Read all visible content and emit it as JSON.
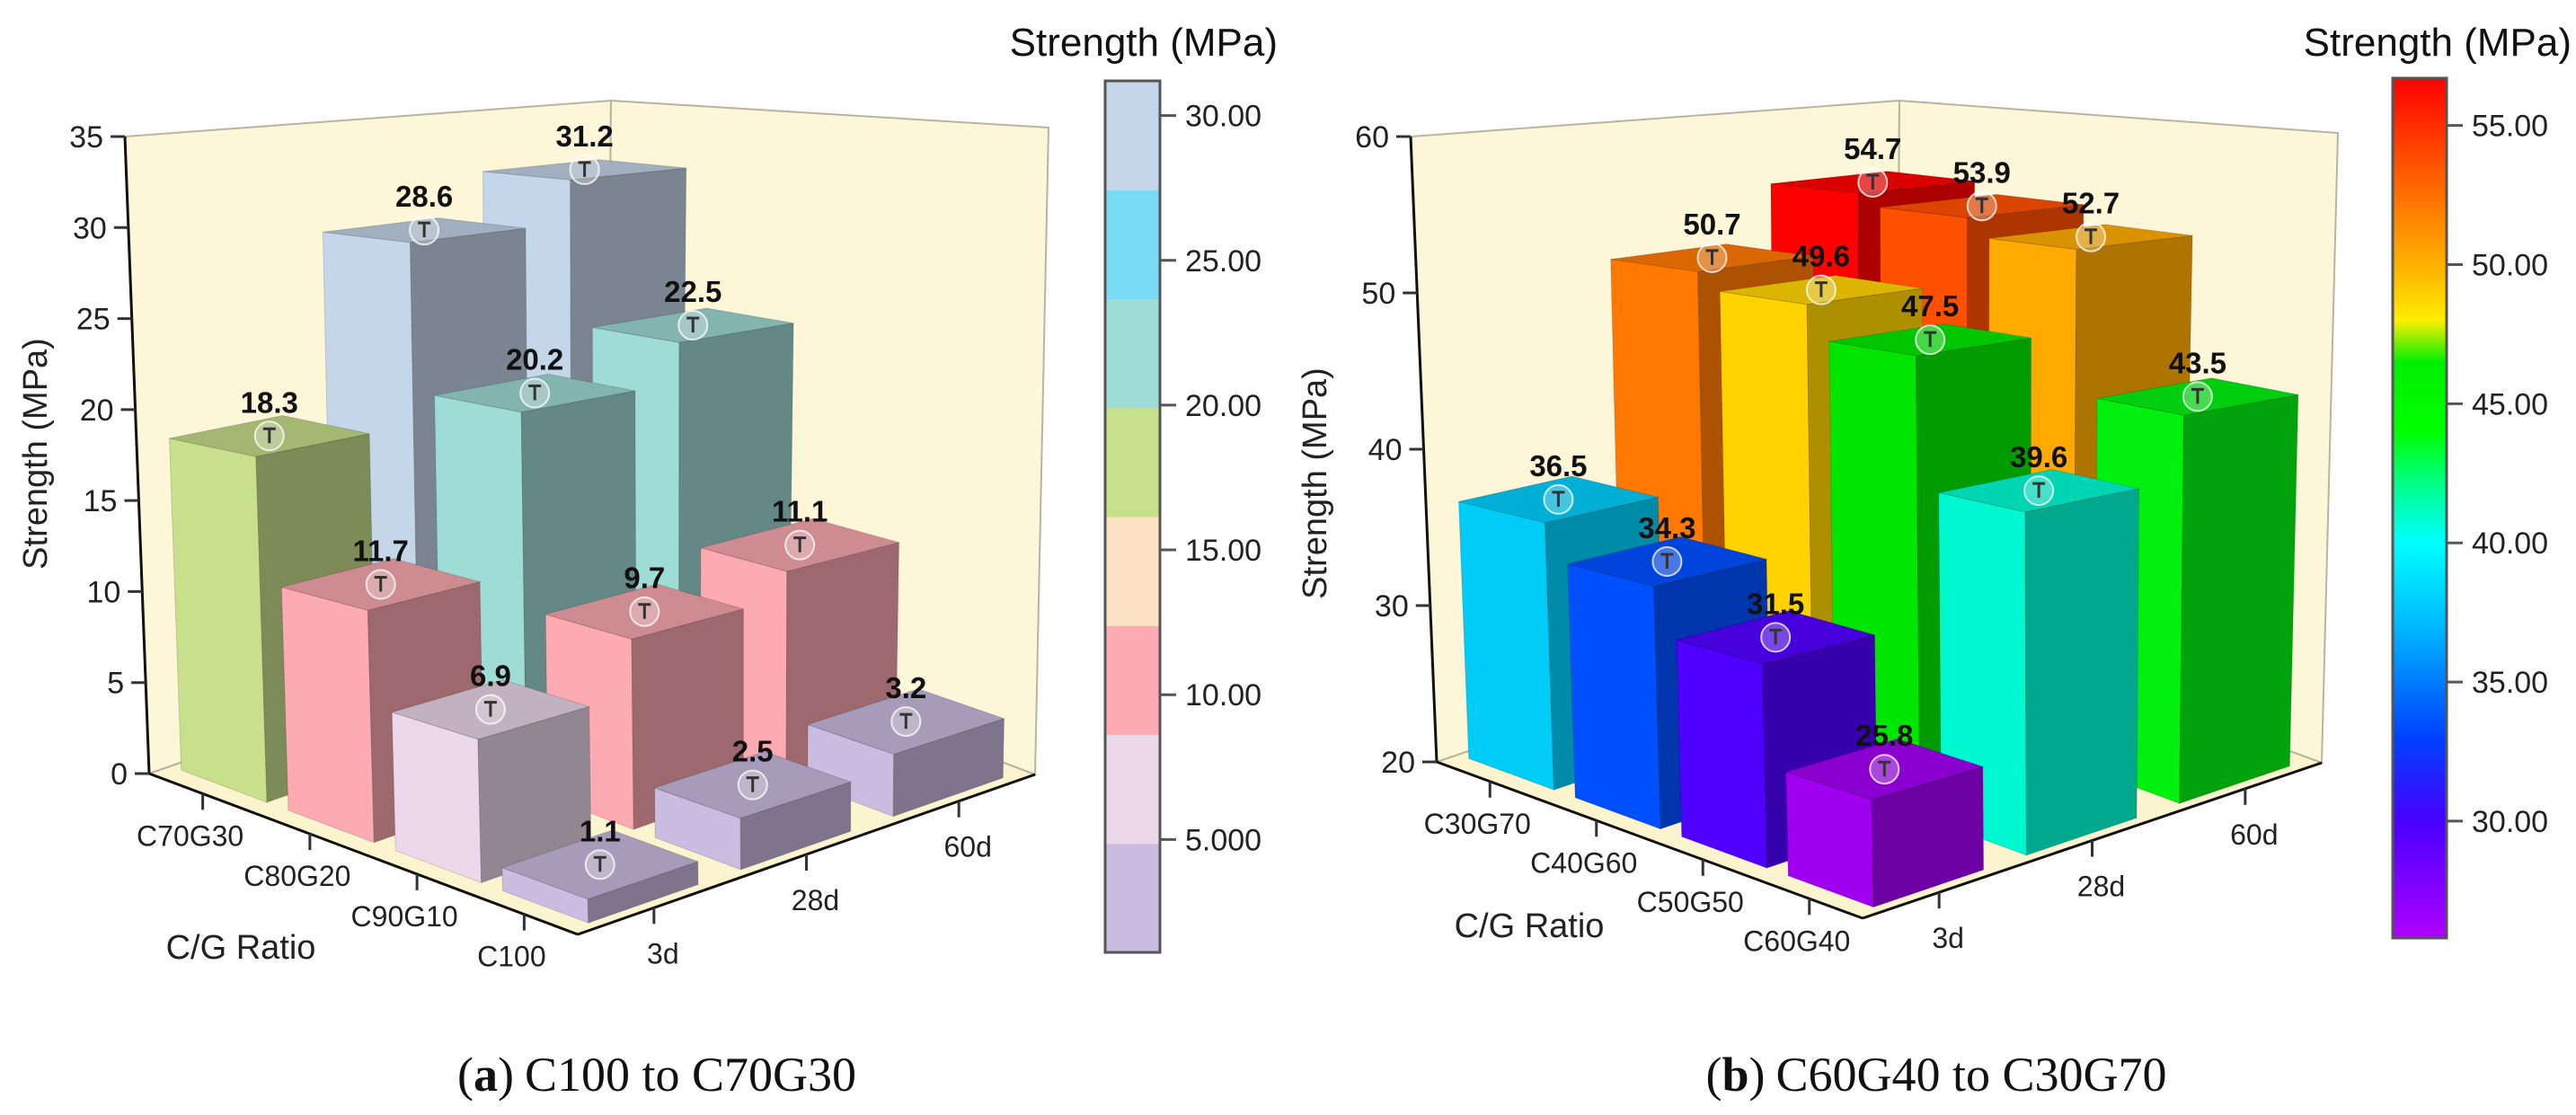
{
  "chart_data": [
    {
      "type": "bar3d",
      "ylabel": "Strength (MPa)",
      "xlabel": "C/G Ratio",
      "colorbar_title": "Strength (MPa)",
      "caption": {
        "open": "(",
        "letter": "a",
        "close": ")",
        "text": "C100 to C70G30"
      },
      "ylim": [
        0,
        35
      ],
      "yticks": [
        0,
        5,
        10,
        15,
        20,
        25,
        30,
        35
      ],
      "categories": [
        "C70G30",
        "C80G20",
        "C90G10",
        "C100"
      ],
      "ages": [
        "3d",
        "28d",
        "60d"
      ],
      "values": [
        [
          18.3,
          28.6,
          31.2
        ],
        [
          11.7,
          20.2,
          22.5
        ],
        [
          6.9,
          9.7,
          11.1
        ],
        [
          1.1,
          2.5,
          3.2
        ]
      ],
      "colors": [
        [
          "#c8e08c",
          "#c4d6ea",
          "#c4d6ea"
        ],
        [
          "#fdaab2",
          "#a0dcd6",
          "#a0dcd6"
        ],
        [
          "#ecd8ea",
          "#fdaab2",
          "#fdaab2"
        ],
        [
          "#cbbde2",
          "#cbbde2",
          "#cbbde2"
        ]
      ],
      "colorbar": {
        "kind": "discrete",
        "range": [
          1.1,
          31.2
        ],
        "bins": [
          "#cbbde2",
          "#ecd8ea",
          "#fdaab2",
          "#fde2c4",
          "#c8e08c",
          "#a0dcd6",
          "#7adcf4",
          "#c4d6ea"
        ],
        "ticks": [
          5,
          10,
          15,
          20,
          25,
          30
        ],
        "tick_labels": [
          "5.000",
          "10.00",
          "15.00",
          "20.00",
          "25.00",
          "30.00"
        ]
      }
    },
    {
      "type": "bar3d",
      "ylabel": "Strength (MPa)",
      "xlabel": "C/G Ratio",
      "colorbar_title": "Strength (MPa)",
      "caption": {
        "open": "(",
        "letter": "b",
        "close": ")",
        "text": "C60G40 to C30G70"
      },
      "ylim": [
        20,
        60
      ],
      "yticks": [
        20,
        30,
        40,
        50,
        60
      ],
      "categories": [
        "C30G70",
        "C40G60",
        "C50G50",
        "C60G40"
      ],
      "ages": [
        "3d",
        "28d",
        "60d"
      ],
      "values": [
        [
          36.5,
          50.7,
          54.7
        ],
        [
          34.3,
          49.6,
          53.9
        ],
        [
          31.5,
          47.5,
          52.7
        ],
        [
          25.8,
          39.6,
          43.5
        ]
      ],
      "colors": [
        [
          "#00ccf8",
          "#ff7800",
          "#ff0000"
        ],
        [
          "#0050ff",
          "#ffd200",
          "#ff5000"
        ],
        [
          "#5000ff",
          "#00e600",
          "#ffaa00"
        ],
        [
          "#a000f0",
          "#00f8d0",
          "#00f010"
        ]
      ],
      "colorbar": {
        "kind": "gradient",
        "range": [
          25.8,
          56.7
        ],
        "stops": [
          [
            25.8,
            "#b000ff"
          ],
          [
            30,
            "#4800ff"
          ],
          [
            33,
            "#0040ff"
          ],
          [
            37,
            "#00b8ff"
          ],
          [
            40,
            "#00ffff"
          ],
          [
            42,
            "#00ff90"
          ],
          [
            44,
            "#00ff00"
          ],
          [
            46.5,
            "#00f000"
          ],
          [
            48,
            "#ffee00"
          ],
          [
            50,
            "#ffb000"
          ],
          [
            52.5,
            "#ff7000"
          ],
          [
            56.7,
            "#ff0000"
          ]
        ],
        "ticks": [
          30,
          35,
          40,
          45,
          50,
          55
        ],
        "tick_labels": [
          "30.00",
          "35.00",
          "40.00",
          "45.00",
          "50.00",
          "55.00"
        ]
      }
    }
  ]
}
